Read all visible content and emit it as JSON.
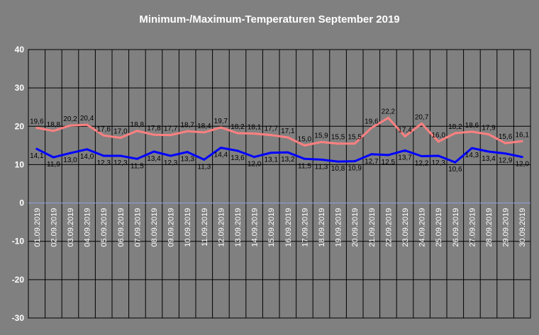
{
  "chart_data": {
    "type": "line",
    "title": "Minimum-/Maximum-Temperaturen September 2019",
    "xlabel": "",
    "ylabel": "",
    "ylim": [
      -30,
      40
    ],
    "yticks": [
      -30,
      -20,
      -10,
      0,
      10,
      20,
      30,
      40
    ],
    "grid": true,
    "legend": "none",
    "categories": [
      "01.09.2019",
      "02.09.2019",
      "03.09.2019",
      "04.09.2019",
      "05.09.2019",
      "06.09.2019",
      "07.09.2019",
      "08.09.2019",
      "09.09.2019",
      "10.09.2019",
      "11.09.2019",
      "12.09.2019",
      "13.09.2019",
      "14.09.2019",
      "15.09.2019",
      "16.09.2019",
      "17.09.2019",
      "18.09.2019",
      "19.09.2019",
      "20.09.2019",
      "21.09.2019",
      "22.09.2019",
      "23.09.2019",
      "24.09.2019",
      "25.09.2019",
      "26.09.2019",
      "27.09.2019",
      "28.09.2019",
      "29.09.2019",
      "30.09.2019"
    ],
    "series": [
      {
        "key": "max",
        "color": "#ff8080",
        "values": [
          19.6,
          18.8,
          20.2,
          20.4,
          17.6,
          17.0,
          18.8,
          17.8,
          17.7,
          18.7,
          18.4,
          19.7,
          18.2,
          18.1,
          17.7,
          17.1,
          15.0,
          15.9,
          15.5,
          15.5,
          19.6,
          22.2,
          17.4,
          20.7,
          16.0,
          18.2,
          18.6,
          17.9,
          15.6,
          16.1
        ],
        "labels": [
          "19,6",
          "18,8",
          "20,2",
          "20,4",
          "17,6",
          "17,0",
          "18,8",
          "17,8",
          "17,7",
          "18,7",
          "18,4",
          "19,7",
          "18,2",
          "18,1",
          "17,7",
          "17,1",
          "15,0",
          "15,9",
          "15,5",
          "15,5",
          "19,6",
          "22,2",
          "17,4",
          "20,7",
          "16,0",
          "18,2",
          "18,6",
          "17,9",
          "15,6",
          "16,1"
        ]
      },
      {
        "key": "min",
        "color": "#0000ff",
        "values": [
          14.1,
          11.9,
          13.0,
          14.0,
          12.3,
          12.3,
          11.5,
          13.4,
          12.3,
          13.3,
          11.3,
          14.4,
          13.6,
          12.0,
          13.1,
          13.2,
          11.5,
          11.3,
          10.8,
          10.9,
          12.7,
          12.5,
          13.7,
          12.2,
          12.3,
          10.6,
          14.3,
          13.4,
          12.9,
          12.0
        ],
        "labels": [
          "14,1",
          "11,9",
          "13,0",
          "14,0",
          "12,3",
          "12,3",
          "11,5",
          "13,4",
          "12,3",
          "13,3",
          "11,3",
          "14,4",
          "13,6",
          "12,0",
          "13,1",
          "13,2",
          "11,5",
          "11,3",
          "10,8",
          "10,9",
          "12,7",
          "12,5",
          "13,7",
          "12,2",
          "12,3",
          "10,6",
          "14,3",
          "13,4",
          "12,9",
          "12,0"
        ]
      }
    ],
    "colors": {
      "background": "#808080",
      "plot_area": "#808080",
      "grid": "#000000",
      "zero_line": "#8ea0e0",
      "text": "#ffffff",
      "data_label": "#000000"
    }
  }
}
